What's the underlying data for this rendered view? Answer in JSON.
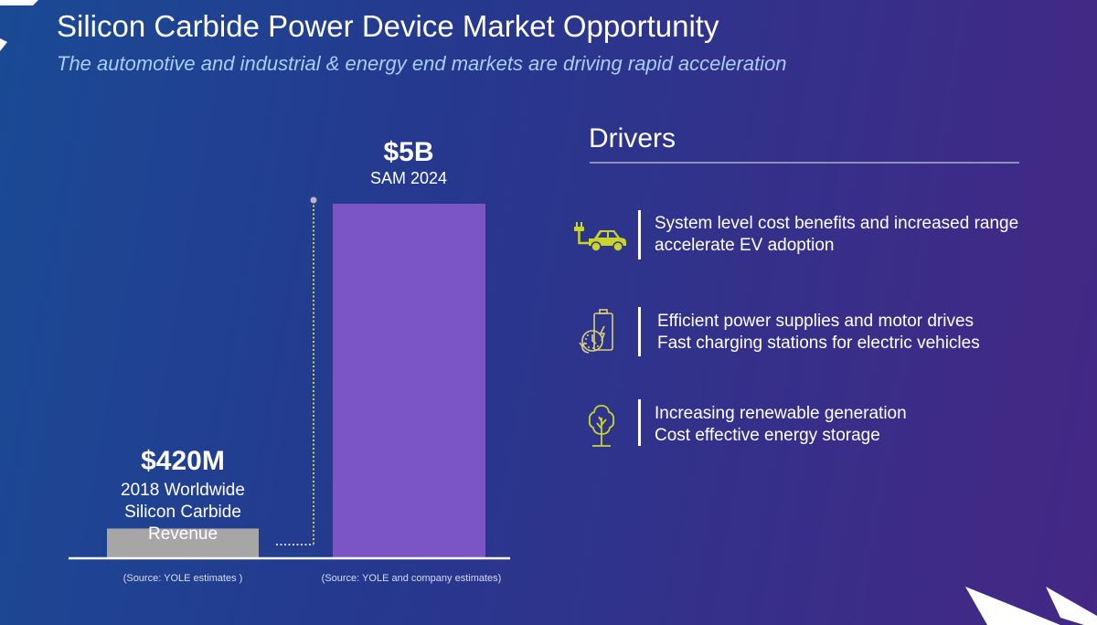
{
  "slide": {
    "title": "Silicon Carbide Power Device Market Opportunity",
    "subtitle": "The automotive and industrial & energy end markets are driving rapid acceleration"
  },
  "chart_data": {
    "type": "bar",
    "title": "",
    "xlabel": "",
    "ylabel": "",
    "unit": "USD (millions)",
    "categories": [
      "2018 Worldwide Silicon Carbide Revenue",
      "SAM 2024"
    ],
    "values": [
      420,
      5000
    ],
    "ylim": [
      0,
      5000
    ],
    "grid": false,
    "bars": [
      {
        "value_label": "$420M",
        "description_lines": [
          "2018 Worldwide",
          "Silicon Carbide",
          "Revenue"
        ],
        "source": "(Source: YOLE estimates )",
        "color": "#a6a6a6"
      },
      {
        "value_label": "$5B",
        "description_lines": [
          "SAM 2024"
        ],
        "source": "(Source: YOLE and company estimates)",
        "color": "#7b55c4"
      }
    ],
    "connector_color": "#c6d62a"
  },
  "drivers": {
    "heading": "Drivers",
    "accent_color": "#c8d42a",
    "items": [
      {
        "icon": "electric-car-icon",
        "lines": [
          "System level cost benefits and increased range",
          "accelerate EV adoption"
        ]
      },
      {
        "icon": "battery-charging-icon",
        "lines": [
          "Efficient power supplies and motor drives",
          "Fast charging stations for electric vehicles"
        ]
      },
      {
        "icon": "tree-icon",
        "lines": [
          "Increasing renewable generation",
          "Cost effective energy storage"
        ]
      }
    ]
  }
}
